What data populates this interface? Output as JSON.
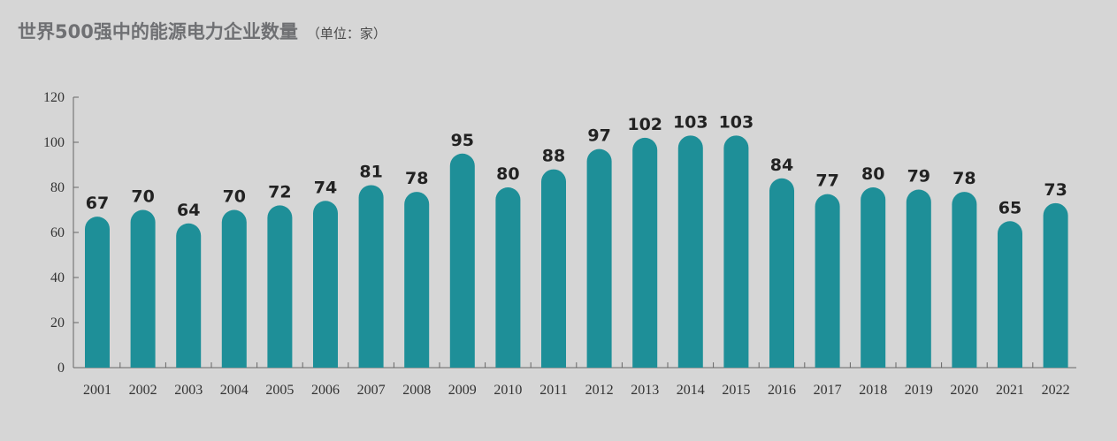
{
  "chart_title": "世界500强中的能源电力企业数量",
  "unit_label": "（单位：家）",
  "colors": {
    "bar": "#1e8f98",
    "background": "#d6d6d6",
    "axis": "#666666"
  },
  "chart_data": {
    "type": "bar",
    "title": "世界500强中的能源电力企业数量",
    "xlabel": "",
    "ylabel": "",
    "ylim": [
      0,
      120
    ],
    "yticks": [
      0,
      20,
      40,
      60,
      80,
      100,
      120
    ],
    "categories": [
      "2001",
      "2002",
      "2003",
      "2004",
      "2005",
      "2006",
      "2007",
      "2008",
      "2009",
      "2010",
      "2011",
      "2012",
      "2013",
      "2014",
      "2015",
      "2016",
      "2017",
      "2018",
      "2019",
      "2020",
      "2021",
      "2022"
    ],
    "values": [
      67,
      70,
      64,
      70,
      72,
      74,
      81,
      78,
      95,
      80,
      88,
      97,
      102,
      103,
      103,
      84,
      77,
      80,
      79,
      78,
      65,
      73
    ],
    "grid": false,
    "data_labels": true
  }
}
